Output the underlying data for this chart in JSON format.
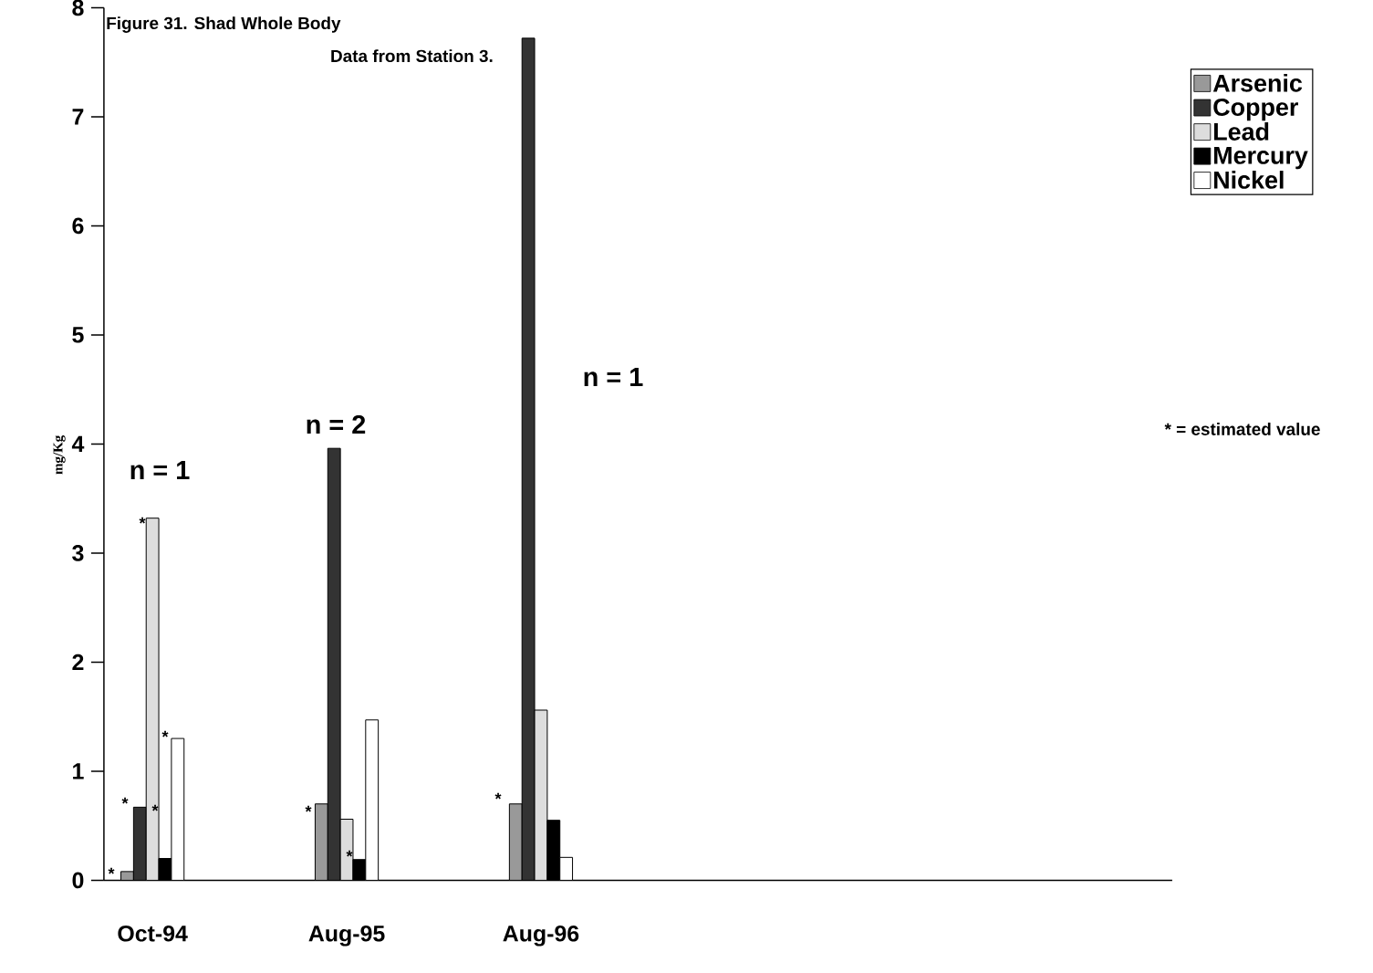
{
  "chart_data": {
    "type": "bar",
    "title": "Figure 31. Shad Whole Body",
    "subtitle": "Data from Station 3.",
    "ylabel": "mg/Kg",
    "categories": [
      "Oct-94",
      null,
      "Aug-95",
      null,
      "Aug-96",
      null,
      null,
      null,
      null,
      null,
      null
    ],
    "series": [
      {
        "name": "Arsenic",
        "color": "#999999",
        "values": [
          0.08,
          null,
          0.7,
          null,
          0.7,
          null,
          null,
          null,
          null,
          null,
          null
        ]
      },
      {
        "name": "Copper",
        "color": "#333333",
        "values": [
          0.67,
          null,
          3.96,
          null,
          7.72,
          null,
          null,
          null,
          null,
          null,
          null
        ]
      },
      {
        "name": "Lead",
        "color": "#dddddd",
        "values": [
          3.32,
          null,
          0.56,
          null,
          1.56,
          null,
          null,
          null,
          null,
          null,
          null
        ]
      },
      {
        "name": "Mercury",
        "color": "#000000",
        "values": [
          0.2,
          null,
          0.19,
          null,
          0.55,
          null,
          null,
          null,
          null,
          null,
          null
        ]
      },
      {
        "name": "Nickel",
        "color": "#ffffff",
        "values": [
          1.3,
          null,
          1.47,
          null,
          0.21,
          null,
          null,
          null,
          null,
          null,
          null
        ]
      }
    ],
    "ylim": [
      0,
      8
    ],
    "yticks": [
      0,
      1,
      2,
      3,
      4,
      5,
      6,
      7,
      8
    ],
    "grid": false,
    "legend": "right",
    "annotations": [
      "*",
      "*",
      "*",
      "*",
      "*",
      "*",
      "*",
      "*",
      "n = 1",
      "n = 2",
      "n = 1",
      "* = estimated value"
    ]
  }
}
